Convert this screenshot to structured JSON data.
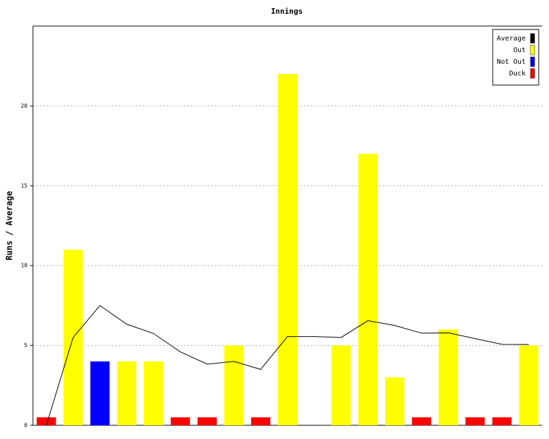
{
  "chart_data": {
    "type": "bar",
    "title": "Innings",
    "y_label": "Runs / Average",
    "categories": [
      null,
      null,
      null,
      null,
      null,
      null,
      null,
      null,
      null,
      null,
      null,
      null,
      null,
      null,
      null,
      null,
      null,
      null,
      null
    ],
    "ylim": [
      0,
      25
    ],
    "yticks": [
      0,
      5,
      10,
      15,
      20
    ],
    "grid": true,
    "legend": "top-right",
    "series": [
      {
        "name": "Average",
        "color": "#000000",
        "type": "line",
        "values": [
          0,
          5.5,
          7.5,
          6.33,
          5.75,
          4.6,
          3.83,
          4.0,
          3.5,
          5.56,
          5.56,
          5.5,
          6.55,
          6.25,
          5.77,
          5.79,
          5.43,
          5.07,
          5.06
        ]
      },
      {
        "name": "Out",
        "color": "#ffff00",
        "values": [
          null,
          11,
          null,
          4,
          4,
          null,
          null,
          5,
          null,
          22,
          null,
          5,
          17,
          3,
          null,
          6,
          null,
          null,
          5
        ]
      },
      {
        "name": "Not Out",
        "color": "#0000ff",
        "values": [
          null,
          null,
          4,
          null,
          null,
          null,
          null,
          null,
          null,
          null,
          null,
          null,
          null,
          null,
          null,
          null,
          null,
          null,
          null
        ]
      },
      {
        "name": "Duck",
        "color": "#ff0000",
        "values": [
          0.5,
          null,
          null,
          null,
          null,
          0.5,
          0.5,
          null,
          0.5,
          null,
          null,
          null,
          null,
          null,
          0.5,
          null,
          0.5,
          0.5,
          null
        ]
      }
    ]
  }
}
